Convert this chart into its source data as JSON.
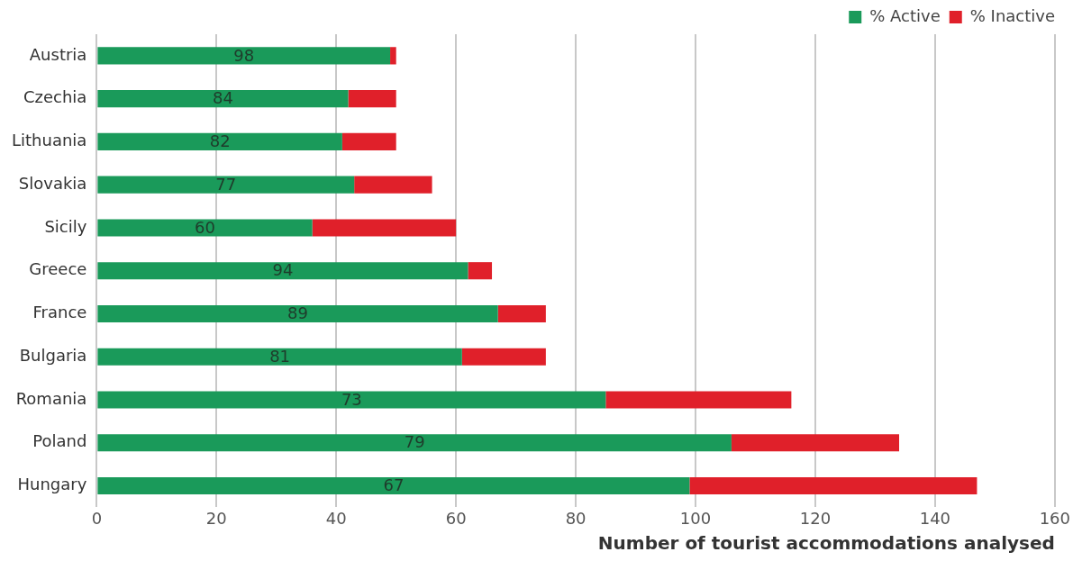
{
  "chart_data": {
    "type": "bar",
    "orientation": "horizontal",
    "stacked": true,
    "categories": [
      "Austria",
      "Czechia",
      "Lithuania",
      "Slovakia",
      "Sicily",
      "Greece",
      "France",
      "Bulgaria",
      "Romania",
      "Poland",
      "Hungary"
    ],
    "series": [
      {
        "name": "% Active",
        "color": "#1a9a5a",
        "values": [
          49,
          42,
          41,
          43,
          36,
          62,
          67,
          61,
          85,
          106,
          99
        ]
      },
      {
        "name": "% Inactive",
        "color": "#e0202a",
        "values": [
          1,
          8,
          9,
          13,
          24,
          4,
          8,
          14,
          31,
          28,
          48
        ]
      }
    ],
    "xlabel": "Number of tourist accommodations analysed",
    "xlim": [
      0,
      160
    ],
    "xticks": [
      0,
      20,
      40,
      60,
      80,
      100,
      120,
      140,
      160
    ],
    "grid": "x",
    "legend": "top right",
    "annotations": [
      "98",
      "84",
      "82",
      "77",
      "60",
      "94",
      "89",
      "81",
      "73",
      "79",
      "67"
    ]
  }
}
